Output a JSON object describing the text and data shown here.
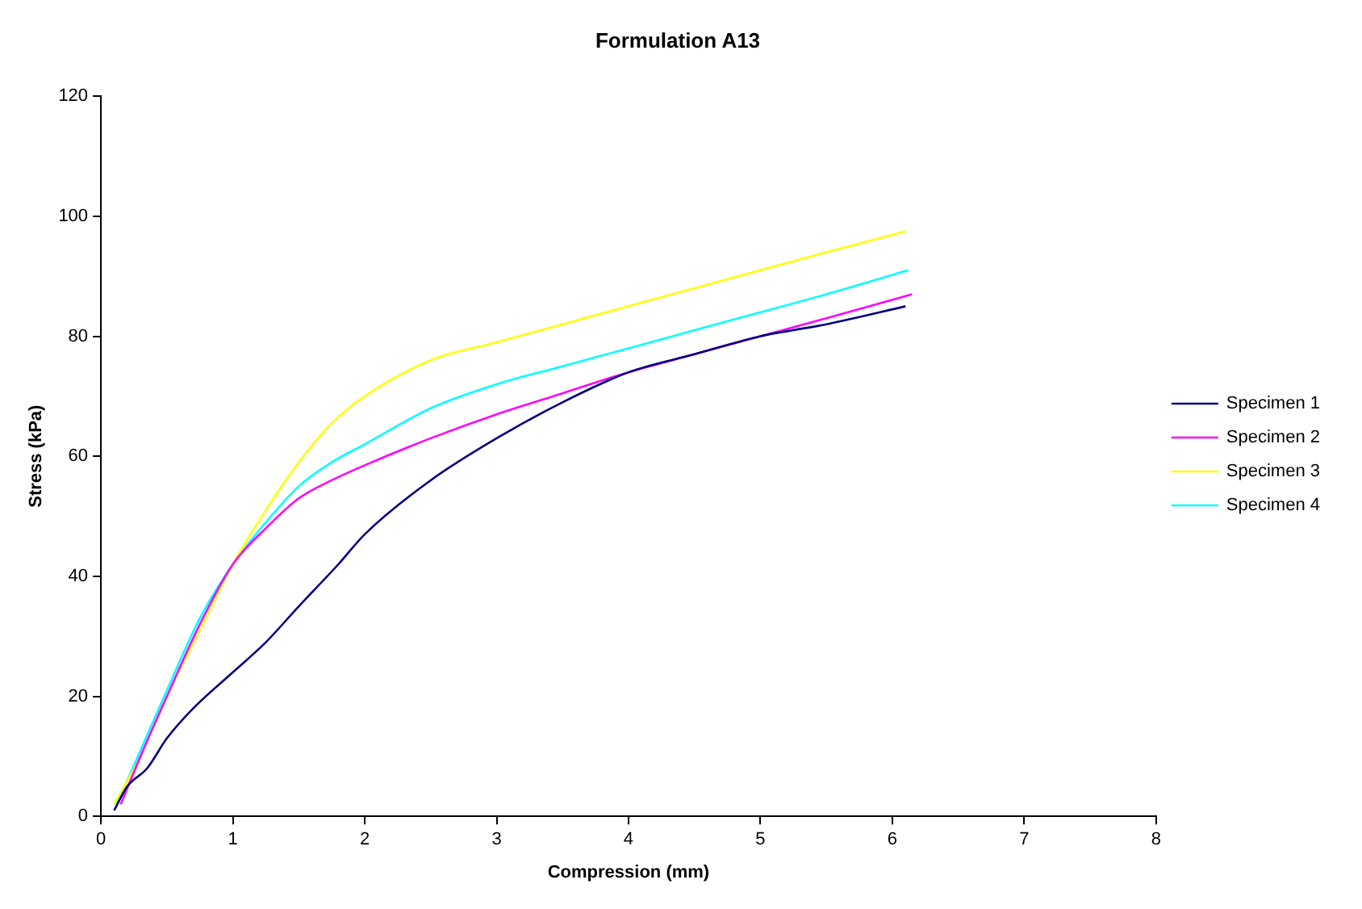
{
  "chart_data": {
    "type": "line",
    "title": "Formulation A13",
    "xlabel": "Compression (mm)",
    "ylabel": "Stress (kPa)",
    "xlim": [
      0,
      8
    ],
    "xticks": [
      0,
      1,
      2,
      3,
      4,
      5,
      6,
      7,
      8
    ],
    "ylim": [
      0,
      120
    ],
    "yticks": [
      0,
      20,
      40,
      60,
      80,
      100,
      120
    ],
    "grid": false,
    "legend": "right",
    "marker": "none",
    "line_style": "solid",
    "series": [
      {
        "name": "Specimen 1",
        "color": "#000080",
        "x": [
          0.1,
          0.2,
          0.35,
          0.5,
          0.7,
          1,
          1.25,
          1.5,
          1.8,
          2,
          2.5,
          3,
          3.5,
          4,
          4.5,
          5,
          5.5,
          6.1
        ],
        "values": [
          1,
          5,
          8,
          13,
          18,
          24,
          29,
          35,
          42,
          47,
          56,
          63,
          69,
          74,
          77,
          80,
          82,
          85
        ]
      },
      {
        "name": "Specimen 2",
        "color": "#ff00ff",
        "x": [
          0.15,
          0.3,
          0.5,
          0.75,
          1,
          1.25,
          1.5,
          1.75,
          2,
          2.5,
          3,
          3.5,
          4,
          4.5,
          5,
          5.5,
          6.15
        ],
        "values": [
          2,
          10,
          20,
          32,
          42,
          48,
          53,
          56,
          58.5,
          63,
          67,
          70.5,
          74,
          77,
          80,
          83,
          87
        ]
      },
      {
        "name": "Specimen 3",
        "color": "#ffff00",
        "x": [
          0.1,
          0.3,
          0.5,
          0.75,
          1,
          1.25,
          1.5,
          1.75,
          2,
          2.5,
          3,
          3.5,
          4,
          4.5,
          5,
          5.5,
          6.1
        ],
        "values": [
          2,
          10,
          20,
          31,
          42,
          51,
          59,
          65.5,
          70,
          76,
          79,
          82,
          85,
          88,
          91,
          94,
          97.5
        ]
      },
      {
        "name": "Specimen 4",
        "color": "#00ffff",
        "x": [
          0.12,
          0.3,
          0.5,
          0.75,
          1,
          1.25,
          1.5,
          1.75,
          2,
          2.5,
          3,
          3.5,
          4,
          4.5,
          5,
          5.5,
          6.12
        ],
        "values": [
          2,
          11,
          21,
          33,
          42,
          49,
          55,
          59,
          62,
          68,
          72,
          75,
          78,
          81,
          84,
          87,
          91
        ]
      }
    ]
  }
}
